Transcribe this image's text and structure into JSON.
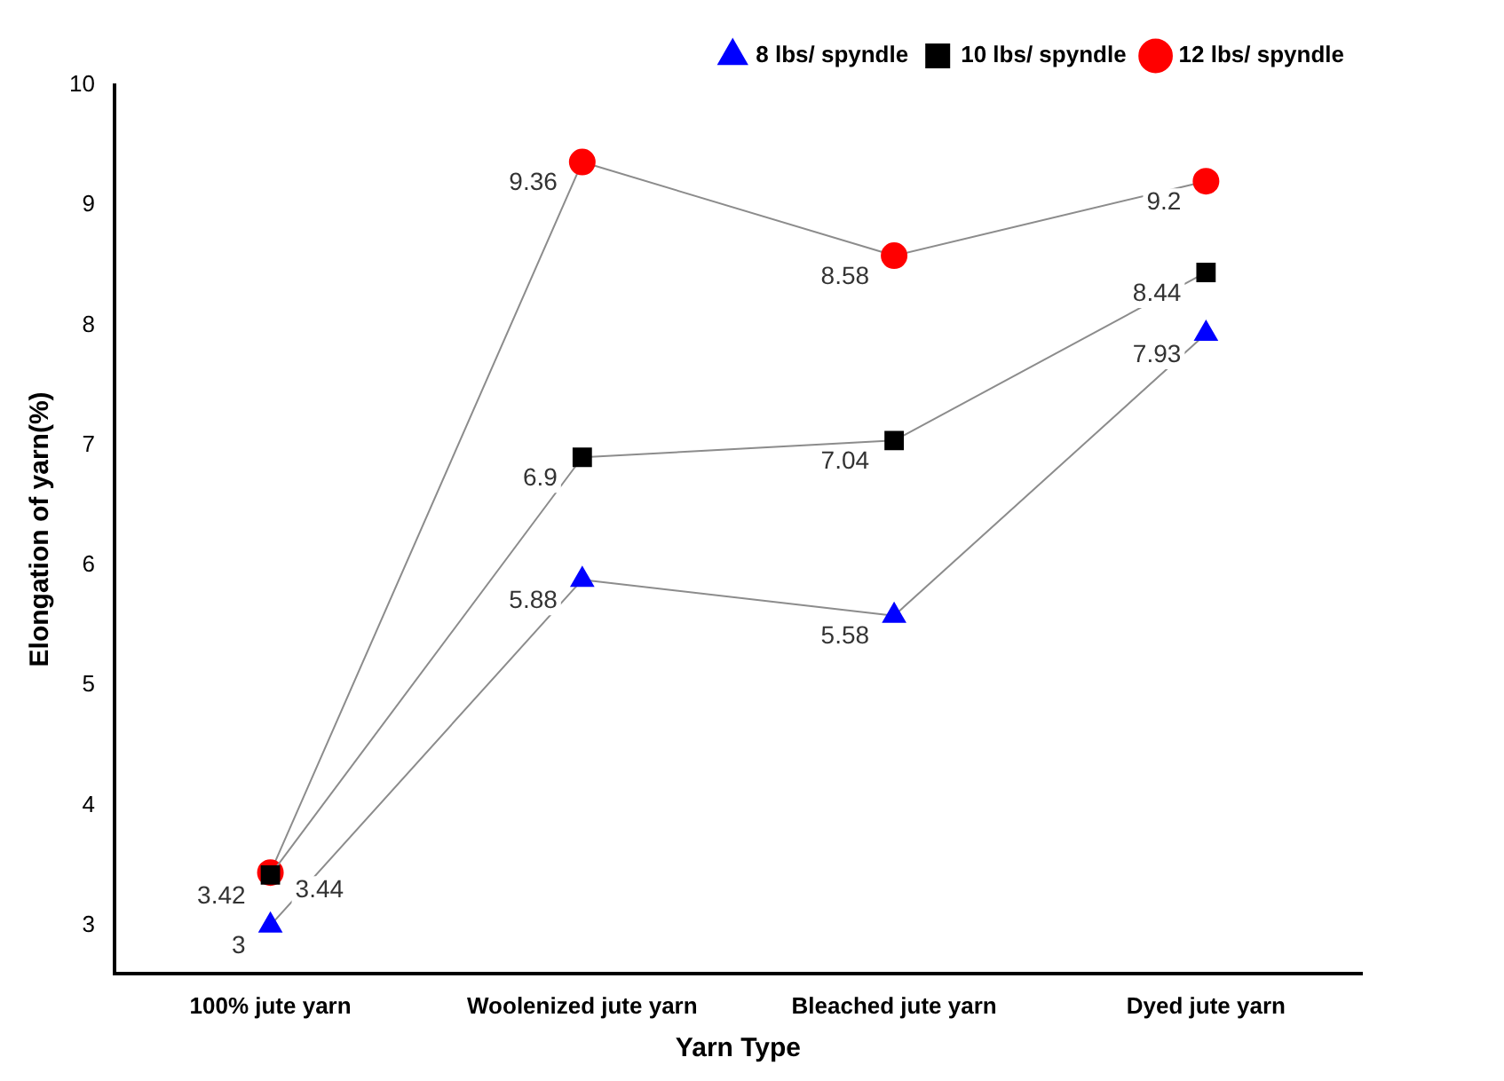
{
  "chart_data": {
    "type": "line",
    "xlabel": "Yarn Type",
    "ylabel": "Elongation of yarn(%)",
    "categories": [
      "100% jute yarn",
      "Woolenized jute yarn",
      "Bleached jute yarn",
      "Dyed jute yarn"
    ],
    "series": [
      {
        "name": "8 lbs/ spyndle",
        "color": "#0000ff",
        "marker": "triangle",
        "values": [
          3,
          5.88,
          5.58,
          7.93
        ]
      },
      {
        "name": "10 lbs/ spyndle",
        "color": "#000000",
        "marker": "square",
        "values": [
          3.42,
          6.9,
          7.04,
          8.44
        ]
      },
      {
        "name": "12 lbs/ spyndle",
        "color": "#ff0000",
        "marker": "circle",
        "values": [
          3.44,
          9.36,
          8.58,
          9.2
        ]
      }
    ],
    "ylim": [
      2.6,
      10
    ],
    "yticks": [
      3,
      4,
      5,
      6,
      7,
      8,
      9,
      10
    ],
    "grid": false,
    "legend": "top right",
    "data_labels": true
  }
}
